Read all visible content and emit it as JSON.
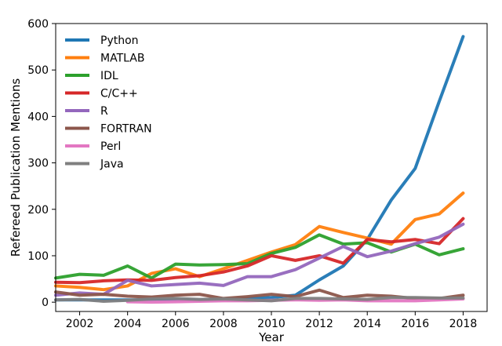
{
  "chart_data": {
    "type": "line",
    "xlabel": "Year",
    "ylabel": "Refereed Publication Mentions",
    "xlim": [
      2001,
      2019
    ],
    "ylim": [
      -20,
      600
    ],
    "xticks": [
      2002,
      2004,
      2006,
      2008,
      2010,
      2012,
      2014,
      2016,
      2018
    ],
    "yticks": [
      0,
      100,
      200,
      300,
      400,
      500,
      600
    ],
    "legend_position": "top-left",
    "series": [
      {
        "name": "Python",
        "color": "#1f77b4",
        "x": [
          2001,
          2002,
          2003,
          2004,
          2005,
          2006,
          2007,
          2008,
          2009,
          2010,
          2011,
          2012,
          2013,
          2014,
          2015,
          2016,
          2017,
          2018
        ],
        "values": [
          5,
          5,
          5,
          5,
          5,
          5,
          5,
          6,
          8,
          10,
          15,
          48,
          78,
          135,
          220,
          288,
          432,
          572
        ]
      },
      {
        "name": "MATLAB",
        "color": "#ff7f0e",
        "x": [
          2001,
          2002,
          2003,
          2004,
          2005,
          2006,
          2007,
          2008,
          2009,
          2010,
          2011,
          2012,
          2013,
          2014,
          2015,
          2016,
          2017,
          2018
        ],
        "values": [
          35,
          32,
          27,
          35,
          62,
          72,
          55,
          72,
          90,
          108,
          124,
          163,
          150,
          138,
          125,
          178,
          190,
          235
        ]
      },
      {
        "name": "IDL",
        "color": "#2ca02c",
        "x": [
          2001,
          2002,
          2003,
          2004,
          2005,
          2006,
          2007,
          2008,
          2009,
          2010,
          2011,
          2012,
          2013,
          2014,
          2015,
          2016,
          2017,
          2018
        ],
        "values": [
          52,
          60,
          58,
          78,
          52,
          82,
          80,
          81,
          83,
          105,
          118,
          145,
          125,
          128,
          108,
          125,
          102,
          115
        ]
      },
      {
        "name": "C/C++",
        "color": "#d62728",
        "x": [
          2001,
          2002,
          2003,
          2004,
          2005,
          2006,
          2007,
          2008,
          2009,
          2010,
          2011,
          2012,
          2013,
          2014,
          2015,
          2016,
          2017,
          2018
        ],
        "values": [
          43,
          42,
          46,
          48,
          47,
          53,
          57,
          65,
          78,
          100,
          90,
          100,
          84,
          135,
          130,
          135,
          126,
          180
        ]
      },
      {
        "name": "R",
        "color": "#9467bd",
        "x": [
          2001,
          2002,
          2003,
          2004,
          2005,
          2006,
          2007,
          2008,
          2009,
          2010,
          2011,
          2012,
          2013,
          2014,
          2015,
          2016,
          2017,
          2018
        ],
        "values": [
          15,
          20,
          17,
          47,
          35,
          38,
          41,
          36,
          55,
          55,
          70,
          95,
          120,
          98,
          110,
          126,
          140,
          168
        ]
      },
      {
        "name": "FORTRAN",
        "color": "#8c564b",
        "x": [
          2001,
          2002,
          2003,
          2004,
          2005,
          2006,
          2007,
          2008,
          2009,
          2010,
          2011,
          2012,
          2013,
          2014,
          2015,
          2016,
          2017,
          2018
        ],
        "values": [
          22,
          15,
          17,
          13,
          11,
          15,
          17,
          8,
          12,
          17,
          12,
          26,
          10,
          15,
          13,
          8,
          8,
          15
        ]
      },
      {
        "name": "Perl",
        "color": "#e377c2",
        "x": [
          2004,
          2005,
          2006,
          2007,
          2008,
          2009,
          2010,
          2011,
          2012,
          2013,
          2014,
          2015,
          2016,
          2017,
          2018
        ],
        "values": [
          1,
          0,
          1,
          2,
          3,
          3,
          4,
          5,
          4,
          5,
          3,
          3,
          3,
          5,
          7
        ]
      },
      {
        "name": "Java",
        "color": "#7f7f7f",
        "x": [
          2001,
          2002,
          2003,
          2004,
          2005,
          2006,
          2007,
          2008,
          2009,
          2010,
          2011,
          2012,
          2013,
          2014,
          2015,
          2016,
          2017,
          2018
        ],
        "values": [
          5,
          6,
          2,
          4,
          7,
          8,
          6,
          7,
          5,
          3,
          8,
          8,
          7,
          6,
          10,
          10,
          9,
          9
        ]
      }
    ]
  }
}
